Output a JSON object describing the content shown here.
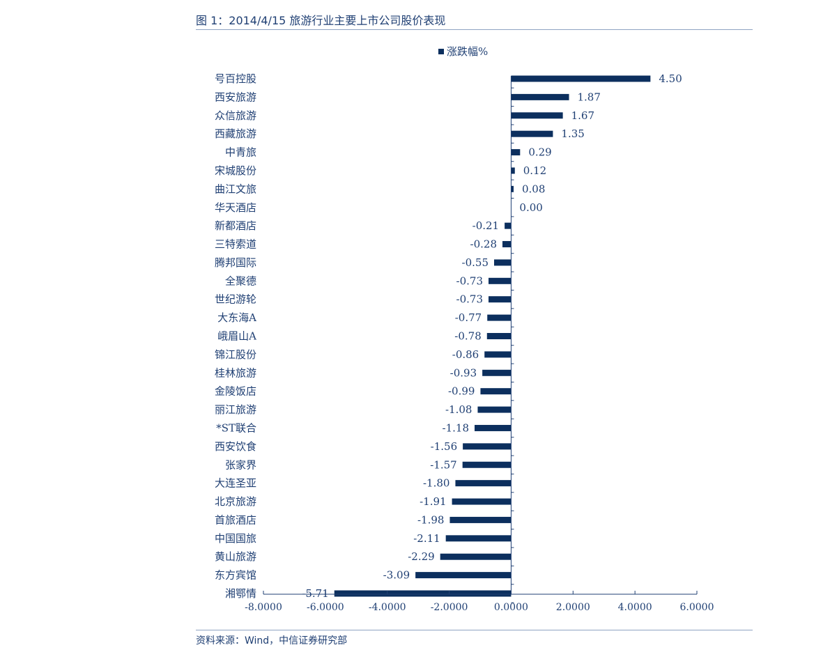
{
  "figure": {
    "title": "图 1：2014/4/15 旅游行业主要上市公司股价表现",
    "source": "资料来源：Wind，中信证券研究部"
  },
  "chart_data": {
    "type": "bar",
    "orientation": "horizontal",
    "legend": {
      "placement": "top-center",
      "entries": [
        "涨跌幅%"
      ]
    },
    "series": [
      {
        "name": "涨跌幅%",
        "color": "#0c2f5e",
        "values": [
          4.5,
          1.87,
          1.67,
          1.35,
          0.29,
          0.12,
          0.08,
          0.0,
          -0.21,
          -0.28,
          -0.55,
          -0.73,
          -0.73,
          -0.77,
          -0.78,
          -0.86,
          -0.93,
          -0.99,
          -1.08,
          -1.18,
          -1.56,
          -1.57,
          -1.8,
          -1.91,
          -1.98,
          -2.11,
          -2.29,
          -3.09,
          -5.71
        ]
      }
    ],
    "categories": [
      "号百控股",
      "西安旅游",
      "众信旅游",
      "西藏旅游",
      "中青旅",
      "宋城股份",
      "曲江文旅",
      "华天酒店",
      "新都酒店",
      "三特索道",
      "腾邦国际",
      "全聚德",
      "世纪游轮",
      "大东海A",
      "峨眉山A",
      "锦江股份",
      "桂林旅游",
      "金陵饭店",
      "丽江旅游",
      "*ST联合",
      "西安饮食",
      "张家界",
      "大连圣亚",
      "北京旅游",
      "首旅酒店",
      "中国国旅",
      "黄山旅游",
      "东方宾馆",
      "湘鄂情"
    ],
    "data_labels": [
      "4.50",
      "1.87",
      "1.67",
      "1.35",
      "0.29",
      "0.12",
      "0.08",
      "0.00",
      "-0.21",
      "-0.28",
      "-0.55",
      "-0.73",
      "-0.73",
      "-0.77",
      "-0.78",
      "-0.86",
      "-0.93",
      "-0.99",
      "-1.08",
      "-1.18",
      "-1.56",
      "-1.57",
      "-1.80",
      "-1.91",
      "-1.98",
      "-2.11",
      "-2.29",
      "-3.09",
      "-5.71"
    ],
    "xlim": [
      -8,
      6
    ],
    "xticks": [
      -8,
      -6,
      -4,
      -2,
      0,
      2,
      4,
      6
    ],
    "xtick_labels": [
      "-8.0000",
      "-6.0000",
      "-4.0000",
      "-2.0000",
      "0.0000",
      "2.0000",
      "4.0000",
      "6.0000"
    ],
    "grid": false,
    "title": "",
    "xlabel": "",
    "ylabel": ""
  },
  "colors": {
    "bar": "#0c2f5e",
    "text": "#1f3f73",
    "axis": "#1f3f73"
  }
}
